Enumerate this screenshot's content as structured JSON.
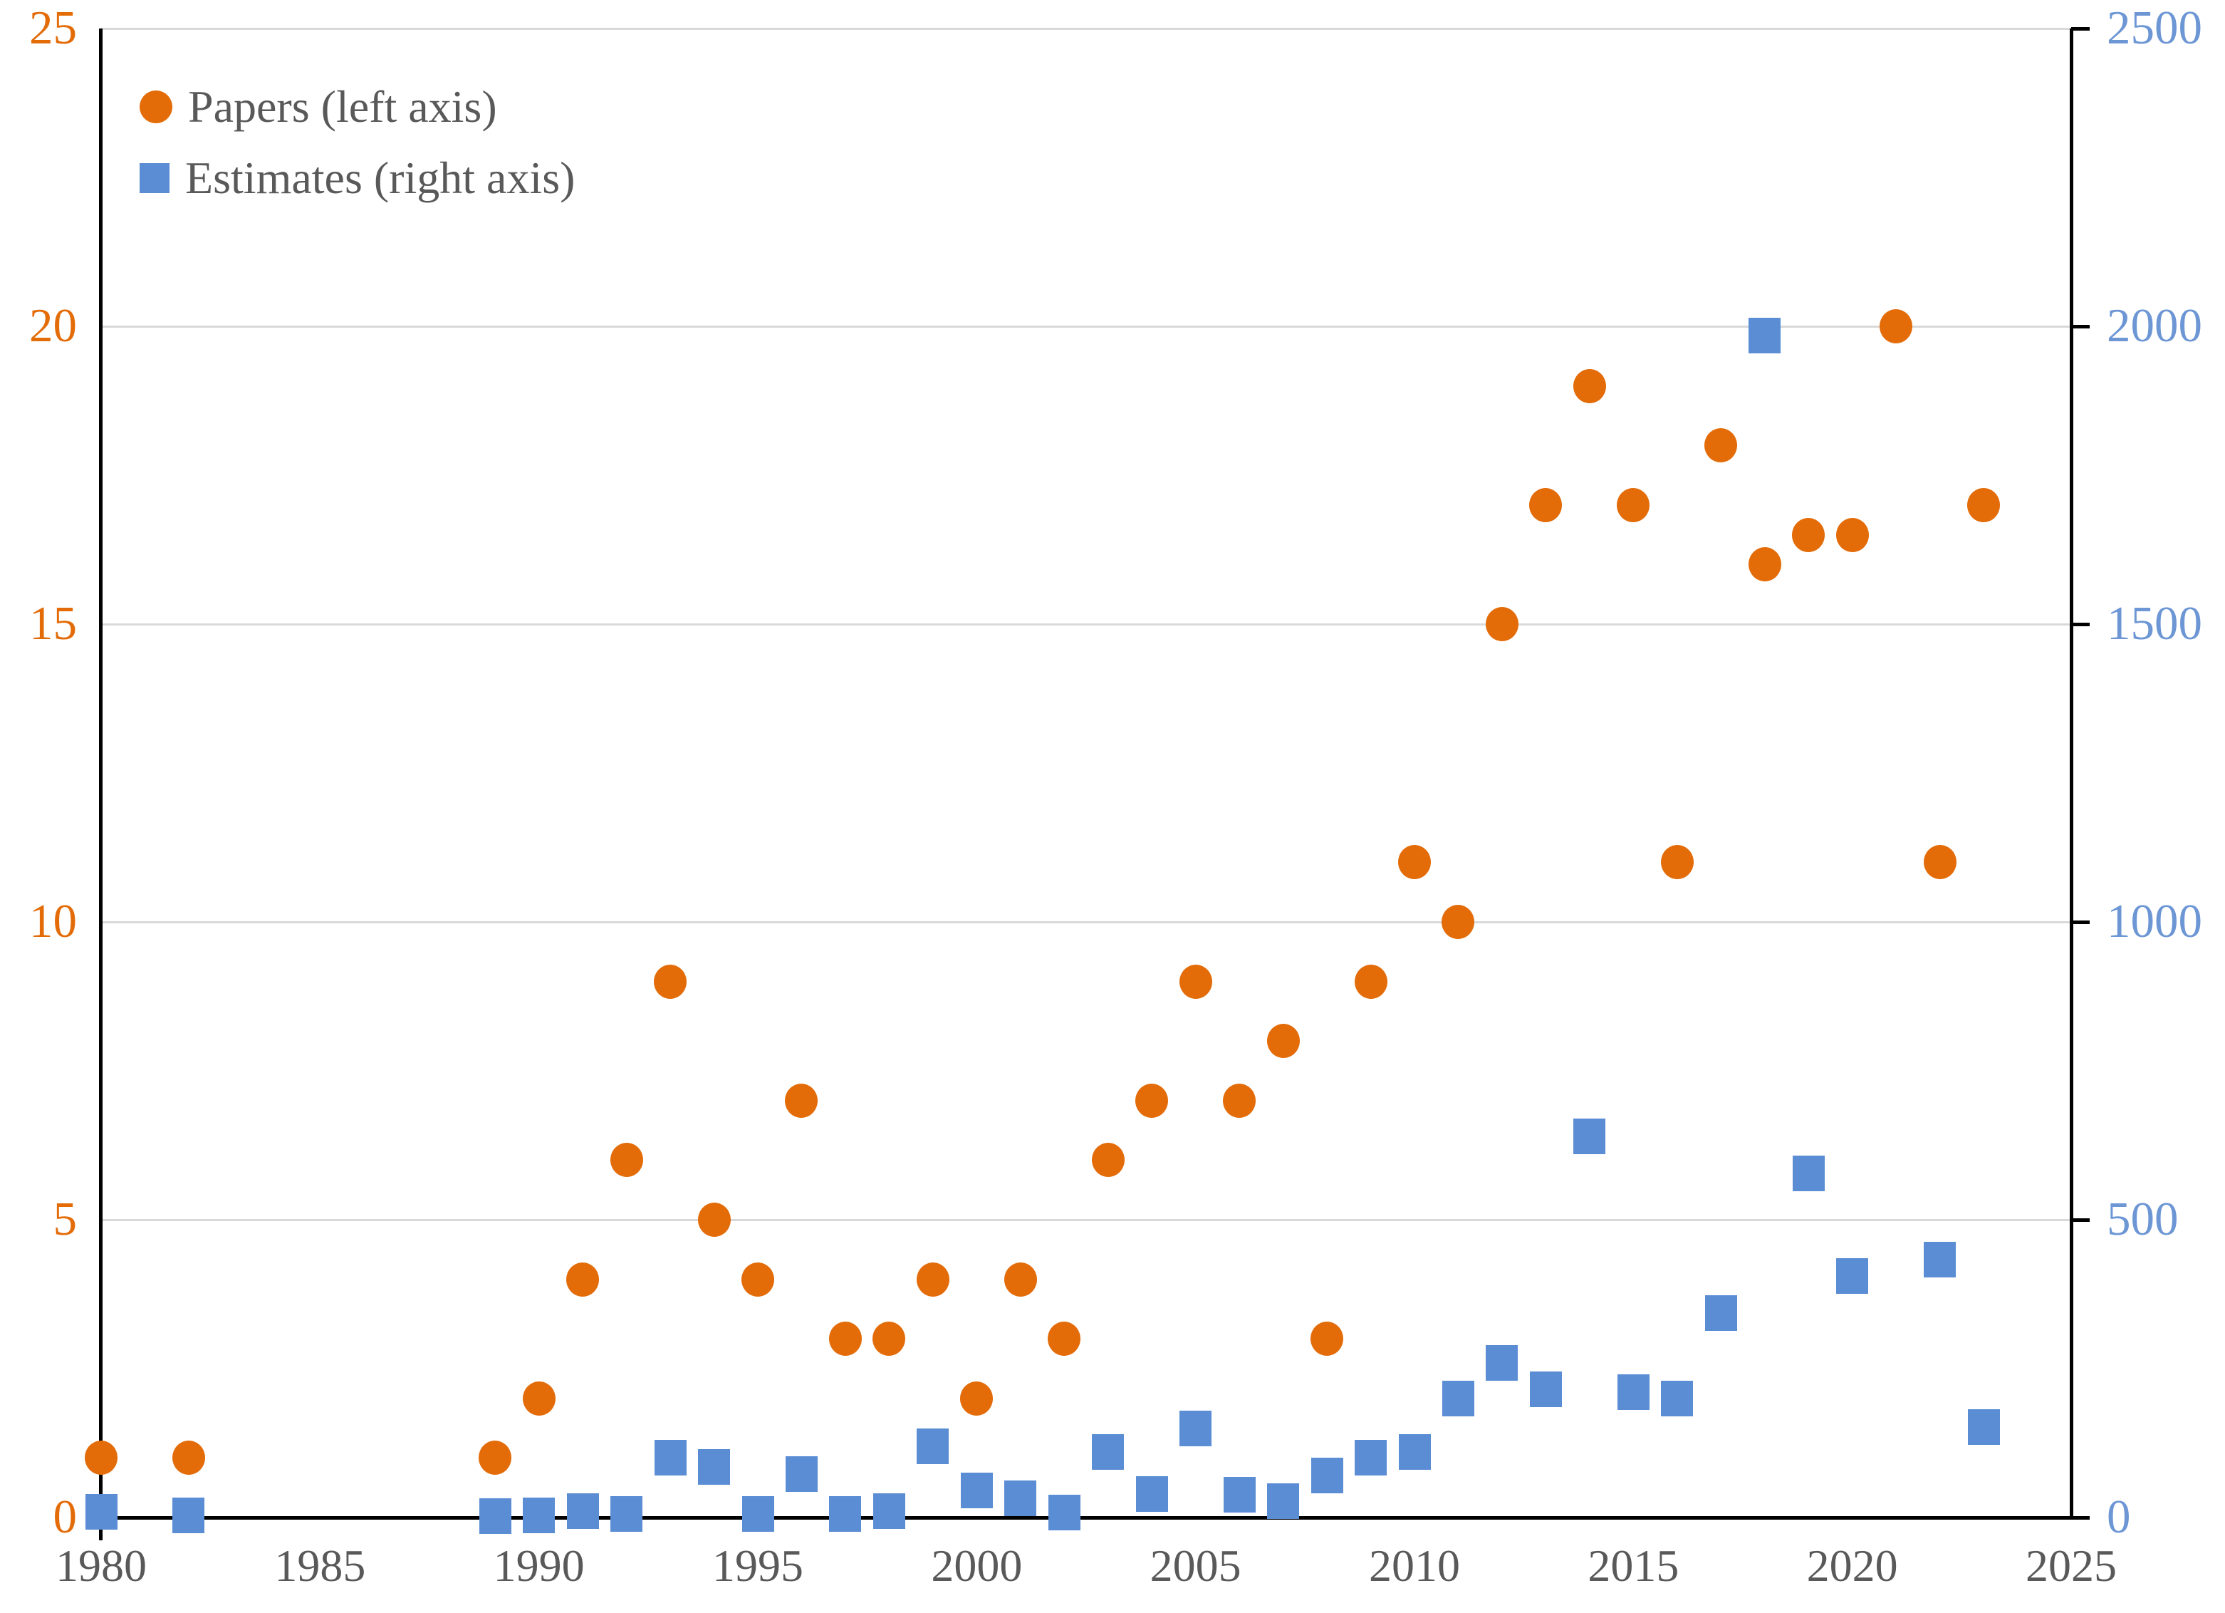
{
  "chart_data": {
    "type": "scatter",
    "title": "",
    "grid": true,
    "legend_position": "top-left",
    "x_axis": {
      "min": 1980,
      "max": 2025,
      "ticks": [
        1980,
        1985,
        1990,
        1995,
        2000,
        2005,
        2010,
        2015,
        2020,
        2025
      ],
      "label_color": "#595959"
    },
    "left_axis": {
      "min": 0,
      "max": 25,
      "ticks": [
        0,
        5,
        10,
        15,
        20,
        25
      ],
      "color": "#e36c09"
    },
    "right_axis": {
      "min": 0,
      "max": 2500,
      "ticks": [
        0,
        500,
        1000,
        1500,
        2000,
        2500
      ],
      "color": "#6c96d4"
    },
    "series": [
      {
        "name": "Papers (left axis)",
        "axis": "left",
        "marker": "circle",
        "color": "#e36c09",
        "points": [
          [
            1980,
            1
          ],
          [
            1982,
            1
          ],
          [
            1989,
            1
          ],
          [
            1990,
            2
          ],
          [
            1991,
            4
          ],
          [
            1992,
            6
          ],
          [
            1993,
            9
          ],
          [
            1994,
            5
          ],
          [
            1995,
            4
          ],
          [
            1996,
            7
          ],
          [
            1997,
            3
          ],
          [
            1998,
            3
          ],
          [
            1999,
            4
          ],
          [
            2000,
            2
          ],
          [
            2001,
            4
          ],
          [
            2002,
            3
          ],
          [
            2003,
            6
          ],
          [
            2004,
            7
          ],
          [
            2005,
            9
          ],
          [
            2006,
            7
          ],
          [
            2007,
            8
          ],
          [
            2008,
            3
          ],
          [
            2009,
            9
          ],
          [
            2010,
            11
          ],
          [
            2011,
            10
          ],
          [
            2012,
            15
          ],
          [
            2013,
            17
          ],
          [
            2014,
            19
          ],
          [
            2015,
            17
          ],
          [
            2016,
            11
          ],
          [
            2017,
            18
          ],
          [
            2018,
            16
          ],
          [
            2019,
            16.5
          ],
          [
            2020,
            16.5
          ],
          [
            2021,
            20
          ],
          [
            2022,
            11
          ],
          [
            2023,
            17
          ]
        ]
      },
      {
        "name": "Estimates (right axis)",
        "axis": "right",
        "marker": "square",
        "color": "#5b8dd4",
        "points": [
          [
            1980,
            10
          ],
          [
            1982,
            3
          ],
          [
            1989,
            2
          ],
          [
            1990,
            3
          ],
          [
            1991,
            11
          ],
          [
            1992,
            6
          ],
          [
            1993,
            100
          ],
          [
            1994,
            85
          ],
          [
            1995,
            6
          ],
          [
            1996,
            73
          ],
          [
            1997,
            6
          ],
          [
            1998,
            11
          ],
          [
            1999,
            120
          ],
          [
            2000,
            45
          ],
          [
            2001,
            32
          ],
          [
            2002,
            8
          ],
          [
            2003,
            110
          ],
          [
            2004,
            40
          ],
          [
            2005,
            150
          ],
          [
            2006,
            38
          ],
          [
            2007,
            28
          ],
          [
            2008,
            70
          ],
          [
            2009,
            100
          ],
          [
            2010,
            110
          ],
          [
            2011,
            200
          ],
          [
            2012,
            260
          ],
          [
            2013,
            215
          ],
          [
            2014,
            640
          ],
          [
            2015,
            210
          ],
          [
            2016,
            200
          ],
          [
            2017,
            343
          ],
          [
            2018,
            1985
          ],
          [
            2019,
            578
          ],
          [
            2020,
            405
          ],
          [
            2022,
            433
          ],
          [
            2023,
            152
          ]
        ]
      }
    ]
  },
  "legend": {
    "items": [
      {
        "label": "Papers (left axis)"
      },
      {
        "label": "Estimates (right axis)"
      }
    ]
  },
  "colors": {
    "orange": "#e36c09",
    "blue_marker": "#5b8dd4",
    "blue_axis_label": "#6c96d4",
    "grid": "#d9d9d9",
    "axis": "#000000",
    "text": "#595959"
  }
}
